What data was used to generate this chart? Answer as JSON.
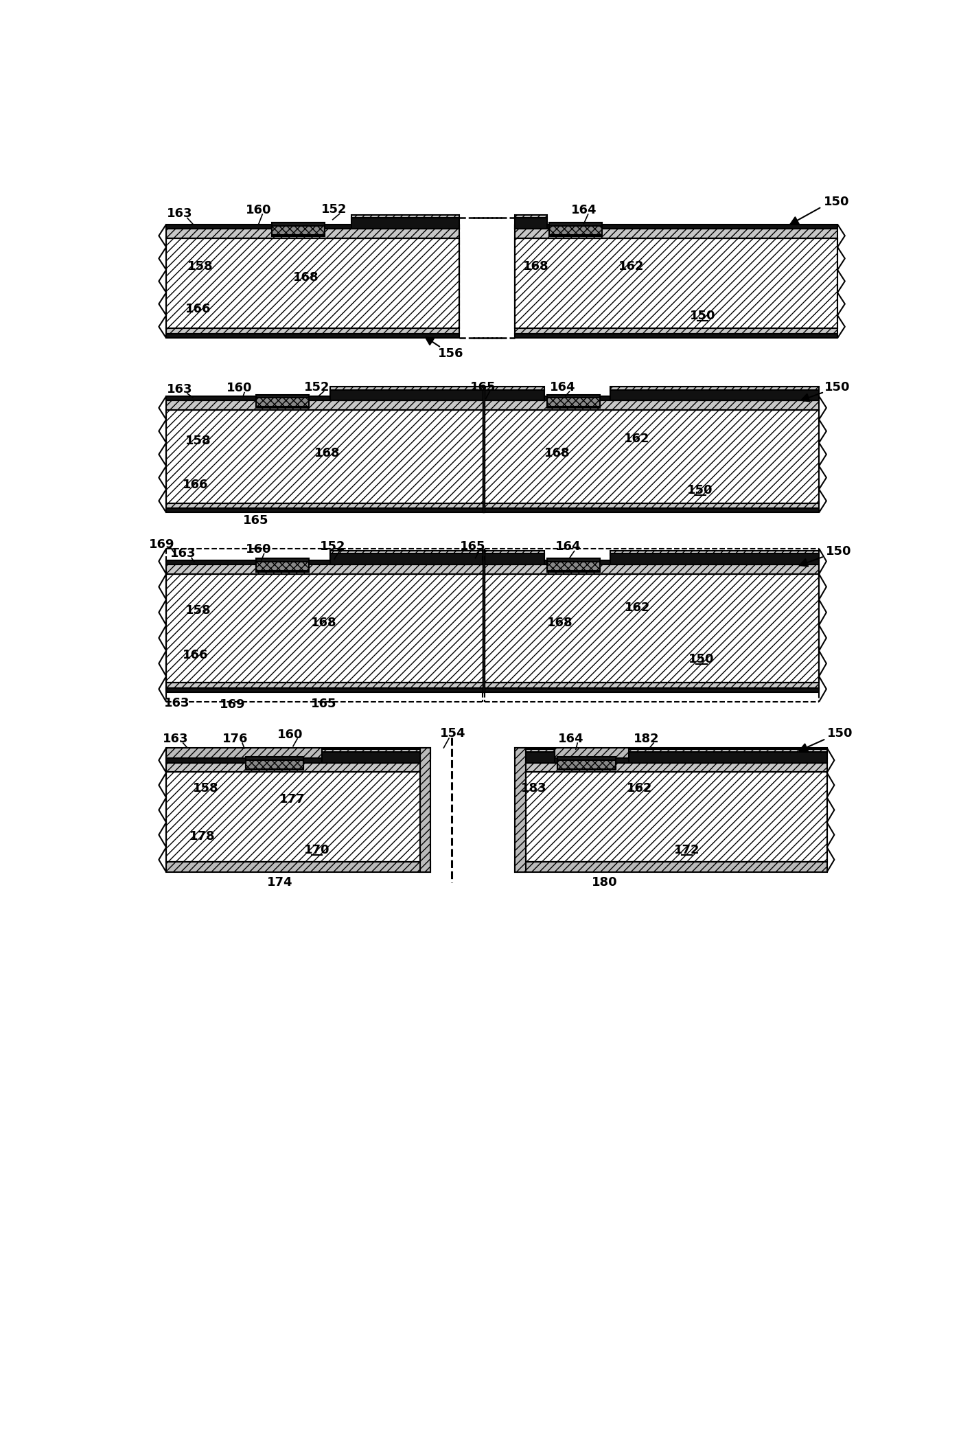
{
  "bg_color": "#ffffff",
  "fig_width": 14.16,
  "fig_height": 21.13,
  "lw": 1.5
}
